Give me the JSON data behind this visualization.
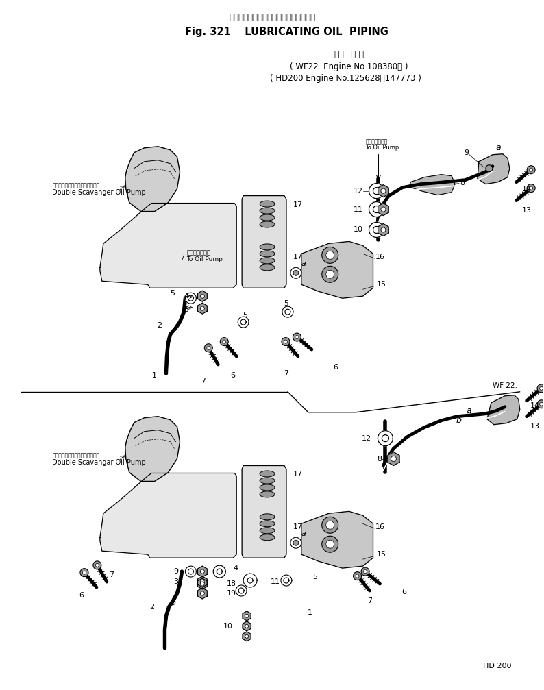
{
  "title_jp": "ルーブリケーティングオイルパイピング",
  "title_en": "Fig. 321    LUBRICATING OIL  PIPING",
  "applic_jp": "適 用 号 機",
  "applic_l1": "( WF22  Engine No.108380～ )",
  "applic_l2": "( HD200 Engine No.125628～147773 )",
  "wf22_label": "WF 22.",
  "hd200_label": "HD 200",
  "scav_jp": "ダブルスカベンジャオイルポンプ",
  "scav_en_top": "Double Scavanger Oil Pump",
  "scav_en_bot": "Double Scavangar Oil Pump",
  "oil_pump_jp": "オイルポンプへ",
  "oil_pump_en": "To Oil Pump",
  "bg": "#ffffff",
  "fg": "#000000",
  "fig_width": 7.94,
  "fig_height": 10.07,
  "dpi": 100
}
